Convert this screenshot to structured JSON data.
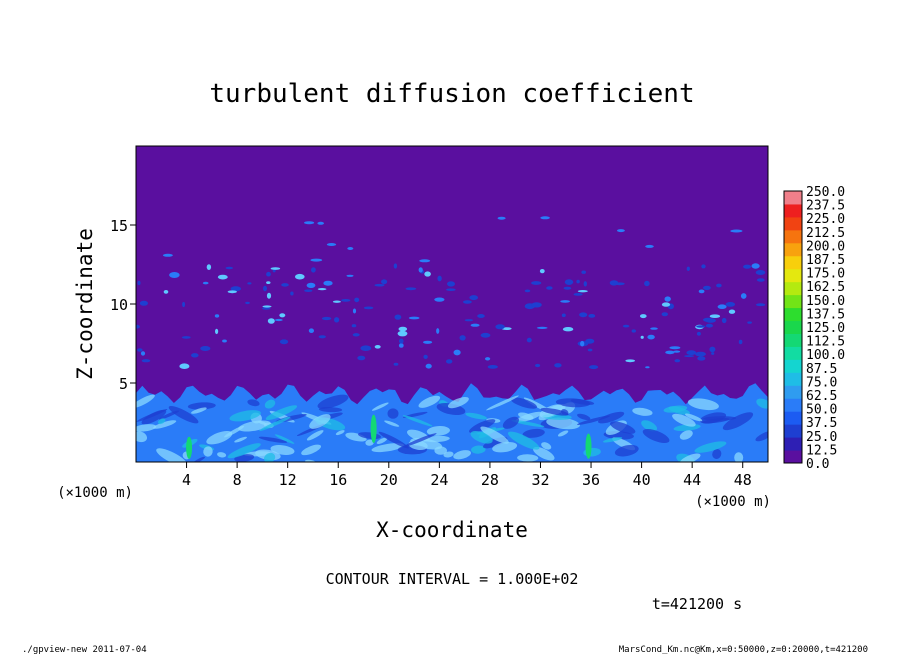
{
  "chart_data": {
    "type": "heatmap",
    "title": "turbulent diffusion coefficient",
    "xlabel": "X-coordinate",
    "ylabel": "Z-coordinate",
    "x_unit": "(×1000 m)",
    "z_unit": "(×1000 m)",
    "xlim": [
      0,
      50
    ],
    "ylim": [
      0,
      20
    ],
    "x_ticks": [
      "4",
      "8",
      "12",
      "16",
      "20",
      "24",
      "28",
      "32",
      "36",
      "40",
      "44",
      "48"
    ],
    "y_ticks": [
      "5",
      "10",
      "15"
    ],
    "colorbar_levels": [
      "0.0",
      "12.5",
      "25.0",
      "37.5",
      "50.0",
      "62.5",
      "75.0",
      "87.5",
      "100.0",
      "112.5",
      "125.0",
      "137.5",
      "150.0",
      "162.5",
      "175.0",
      "187.5",
      "200.0",
      "212.5",
      "225.0",
      "237.5",
      "250.0"
    ],
    "colorbar_colors": [
      "#5a0f9f",
      "#2e1fb4",
      "#1e3fd1",
      "#1c5cf2",
      "#2a7cf8",
      "#2f9cf0",
      "#1fbde6",
      "#14d5d0",
      "#12dca2",
      "#14d874",
      "#1ad74c",
      "#2ddd2e",
      "#72e417",
      "#b4ea10",
      "#e4e80f",
      "#f8cf0c",
      "#f8a20e",
      "#f6740f",
      "#f14312",
      "#ee1f1f",
      "#f07f8a"
    ],
    "background_value": 0.0,
    "contour_interval": "CONTOUR INTERVAL = 1.000E+02",
    "time_label": "t=421200 s",
    "boundary_layer_top": 4.3
  },
  "footer": {
    "left": "./gpview-new  2011-07-04",
    "right": "MarsCond_Km.nc@Km,x=0:50000,z=0:20000,t=421200"
  },
  "colors": {
    "background": "#5a0f9f",
    "turbulent_light": "#8ad8ff",
    "turbulent_mid": "#2a7cf8"
  }
}
